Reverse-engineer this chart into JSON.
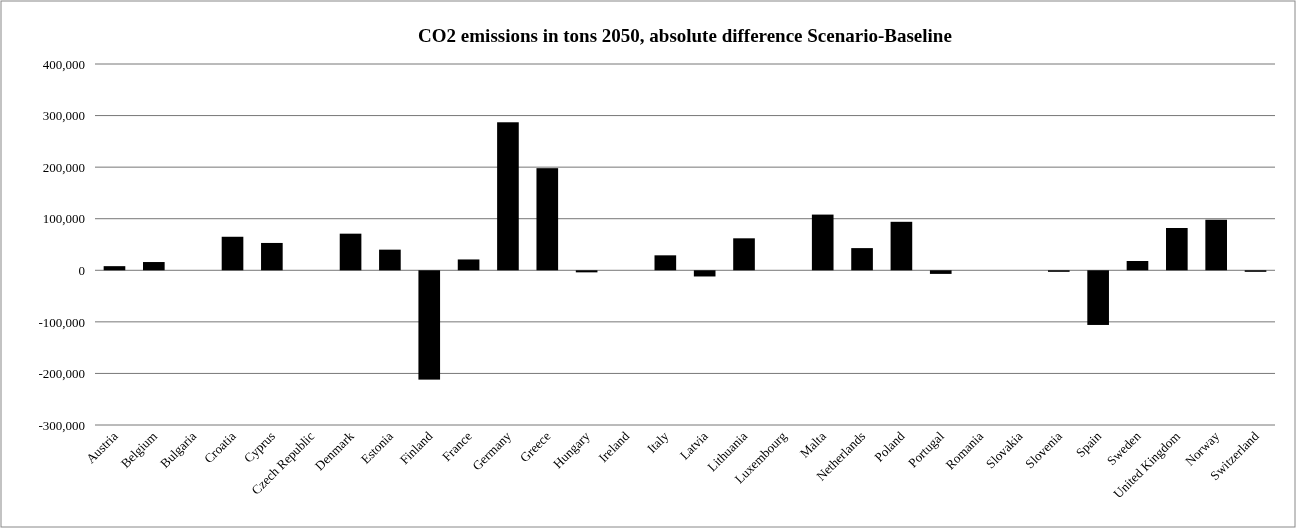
{
  "chart_data": {
    "type": "bar",
    "title": "CO2 emissions in tons 2050, absolute difference Scenario-Baseline",
    "categories": [
      "Austria",
      "Belgium",
      "Bulgaria",
      "Croatia",
      "Cyprus",
      "Czech Republic",
      "Denmark",
      "Estonia",
      "Finland",
      "France",
      "Germany",
      "Greece",
      "Hungary",
      "Ireland",
      "Italy",
      "Latvia",
      "Lithuania",
      "Luxembourg",
      "Malta",
      "Netherlands",
      "Poland",
      "Portugal",
      "Romania",
      "Slovakia",
      "Slovenia",
      "Spain",
      "Sweden",
      "United Kingdom",
      "Norway",
      "Switzerland"
    ],
    "values": [
      8000,
      16000,
      0,
      65000,
      53000,
      0,
      71000,
      40000,
      -212000,
      21000,
      287000,
      198000,
      -4000,
      0,
      29000,
      -12000,
      62000,
      0,
      108000,
      43000,
      94000,
      -7000,
      0,
      0,
      -3000,
      -106000,
      18000,
      82000,
      98000,
      -3000
    ],
    "color": "#000000",
    "ylim": [
      -300000,
      400000
    ],
    "yticks": [
      {
        "value": -300000,
        "label": "-300,000"
      },
      {
        "value": -200000,
        "label": "-200,000"
      },
      {
        "value": -100000,
        "label": "-100,000"
      },
      0,
      {
        "value": 100000,
        "label": "100,000"
      },
      {
        "value": 200000,
        "label": "200,000"
      },
      {
        "value": 300000,
        "label": "300,000"
      },
      {
        "value": 400000,
        "label": "400,000"
      }
    ],
    "grid": "y"
  }
}
